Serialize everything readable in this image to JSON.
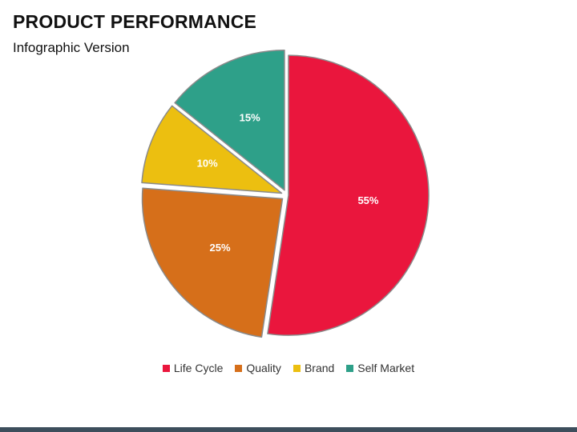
{
  "chart_data": {
    "type": "pie",
    "title": "PRODUCT PERFORMANCE",
    "subtitle": "Infographic Version",
    "legend_position": "bottom",
    "slices": [
      {
        "name": "Life Cycle",
        "value": 55,
        "label": "55%",
        "color": "#ea163d",
        "explode": false
      },
      {
        "name": "Quality",
        "value": 25,
        "label": "25%",
        "color": "#d66f1a",
        "explode": true
      },
      {
        "name": "Brand",
        "value": 10,
        "label": "10%",
        "color": "#ecbf10",
        "explode": true
      },
      {
        "name": "Self Market",
        "value": 15,
        "label": "15%",
        "color": "#2ea089",
        "explode": true
      }
    ]
  },
  "theme": {
    "bottom_bar_color": "#3d4e5c",
    "slice_stroke": "#8a8a8a"
  }
}
